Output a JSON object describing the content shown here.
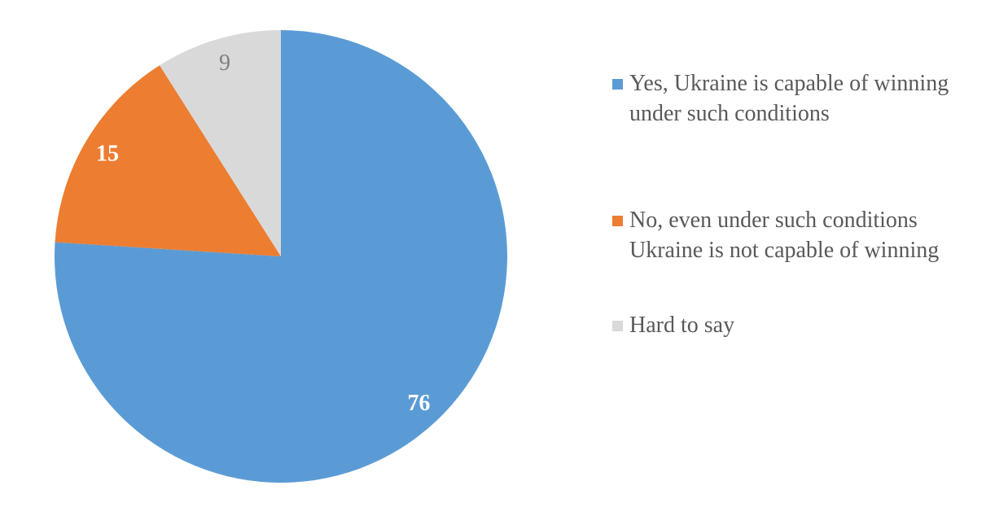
{
  "chart_data": {
    "type": "pie",
    "start_angle": "top",
    "direction": "clockwise",
    "legend_position": "right",
    "slices": [
      {
        "label": "Yes, Ukraine is capable of winning under such conditions",
        "value": 76,
        "color": "#5B9BD5",
        "label_color": "#FFFFFF",
        "label_bold": true
      },
      {
        "label": "No, even under such conditions Ukraine is not capable of winning",
        "value": 15,
        "color": "#ED7D31",
        "label_color": "#FFFFFF",
        "label_bold": true
      },
      {
        "label": "Hard to say",
        "value": 9,
        "color": "#D9D9D9",
        "label_color": "#7F7F7F",
        "label_bold": false
      }
    ]
  }
}
